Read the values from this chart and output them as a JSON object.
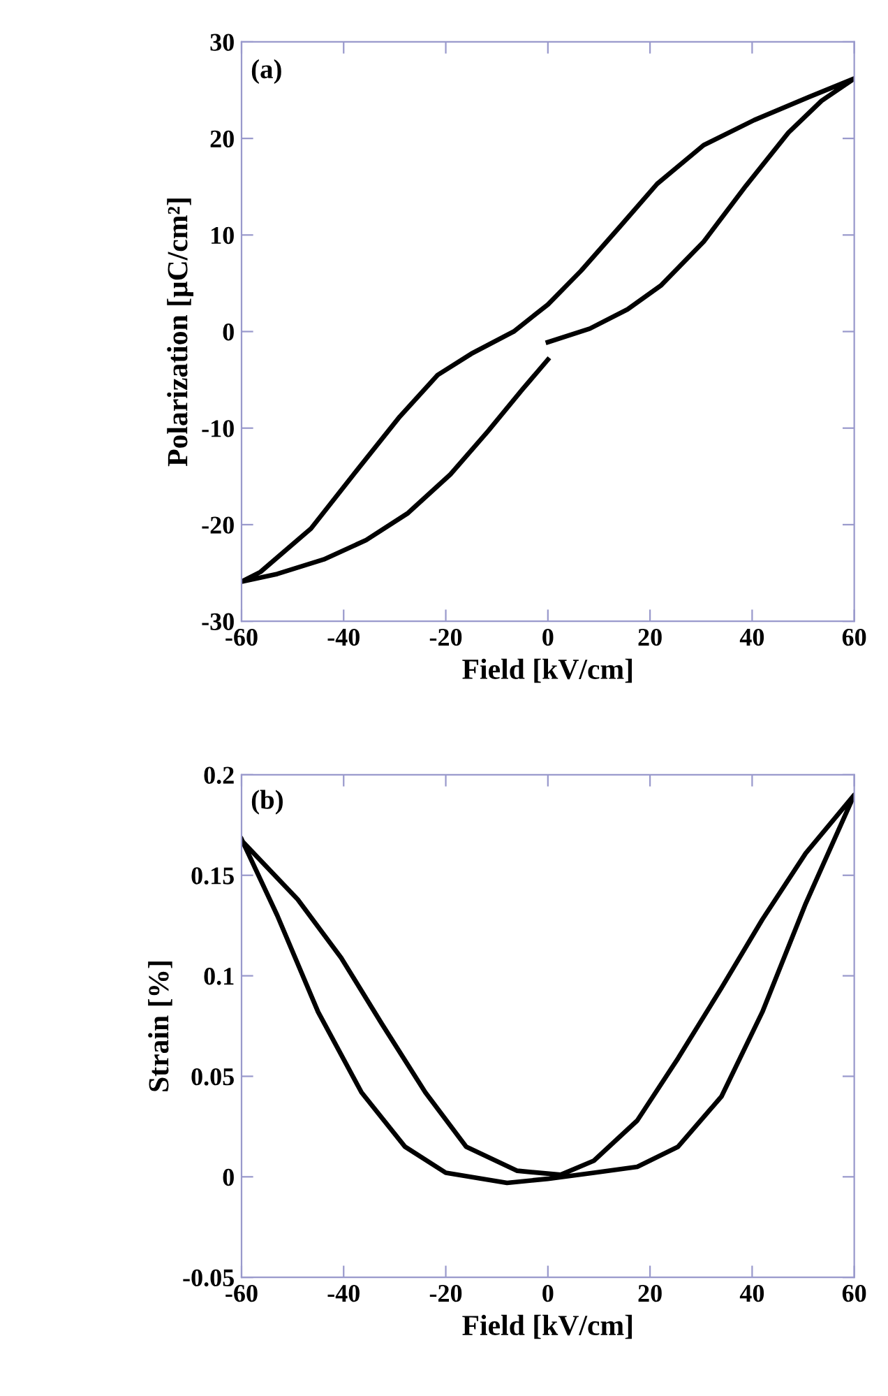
{
  "chart_data": [
    {
      "type": "line",
      "xlabel": "Field [kV/cm]",
      "ylabel": "Polarization [μC/cm²]",
      "annotations": [
        "(a)"
      ],
      "xlim": [
        -60,
        60
      ],
      "ylim": [
        -30,
        30
      ],
      "xticks": [
        -60,
        -40,
        -20,
        0,
        20,
        40,
        60
      ],
      "yticks": [
        -30,
        -20,
        -10,
        0,
        10,
        20,
        30
      ],
      "grid": false,
      "legend": false,
      "marker": "none",
      "line_style": "solid",
      "series": [
        {
          "color": "#000000",
          "x": [
            0,
            8.2,
            15.6,
            22.2,
            30.5,
            38.8,
            47.1,
            53.6,
            60,
            51.2,
            40.4,
            30.5,
            21.4,
            14.0,
            6.5,
            0,
            -6.7,
            -15,
            -21.6,
            -29,
            -37.3,
            -46.4,
            -56.3,
            -60,
            -53,
            -43.9,
            -35.6,
            -27.4,
            -19.1,
            -11.7,
            -5,
            0
          ],
          "values": [
            -1.1,
            0.3,
            2.3,
            4.8,
            9.3,
            15.1,
            20.6,
            23.9,
            26.2,
            24.3,
            21.9,
            19.3,
            15.3,
            10.8,
            6.3,
            2.8,
            0,
            -2.3,
            -4.5,
            -8.8,
            -14.3,
            -20.4,
            -24.9,
            -25.9,
            -25.1,
            -23.6,
            -21.6,
            -18.8,
            -14.8,
            -10.3,
            -6.0,
            -2.9
          ]
        }
      ]
    },
    {
      "type": "line",
      "xlabel": "Field [kV/cm]",
      "ylabel": "Strain [%]",
      "annotations": [
        "(b)"
      ],
      "xlim": [
        -60,
        60
      ],
      "ylim": [
        -0.05,
        0.2
      ],
      "xticks": [
        -60,
        -40,
        -20,
        0,
        20,
        40,
        60
      ],
      "yticks": [
        -0.05,
        0,
        0.05,
        0.1,
        0.15,
        0.2
      ],
      "grid": false,
      "legend": false,
      "marker": "none",
      "line_style": "solid",
      "series": [
        {
          "color": "#000000",
          "x": [
            -60,
            -53,
            -45,
            -36.5,
            -28,
            -20,
            -8,
            0,
            9,
            17.5,
            25.5,
            34,
            42,
            50.5,
            60,
            50.5,
            42,
            34,
            25.5,
            17.5,
            9,
            2.5,
            -6,
            -16,
            -24,
            -32.5,
            -40.5,
            -49,
            -59.5
          ],
          "values": [
            0.168,
            0.13,
            0.082,
            0.042,
            0.015,
            0.002,
            -0.003,
            -0.001,
            0.002,
            0.005,
            0.015,
            0.04,
            0.082,
            0.136,
            0.19,
            0.161,
            0.128,
            0.094,
            0.059,
            0.028,
            0.008,
            0.001,
            0.003,
            0.015,
            0.042,
            0.076,
            0.109,
            0.138,
            0.166
          ]
        }
      ]
    }
  ]
}
